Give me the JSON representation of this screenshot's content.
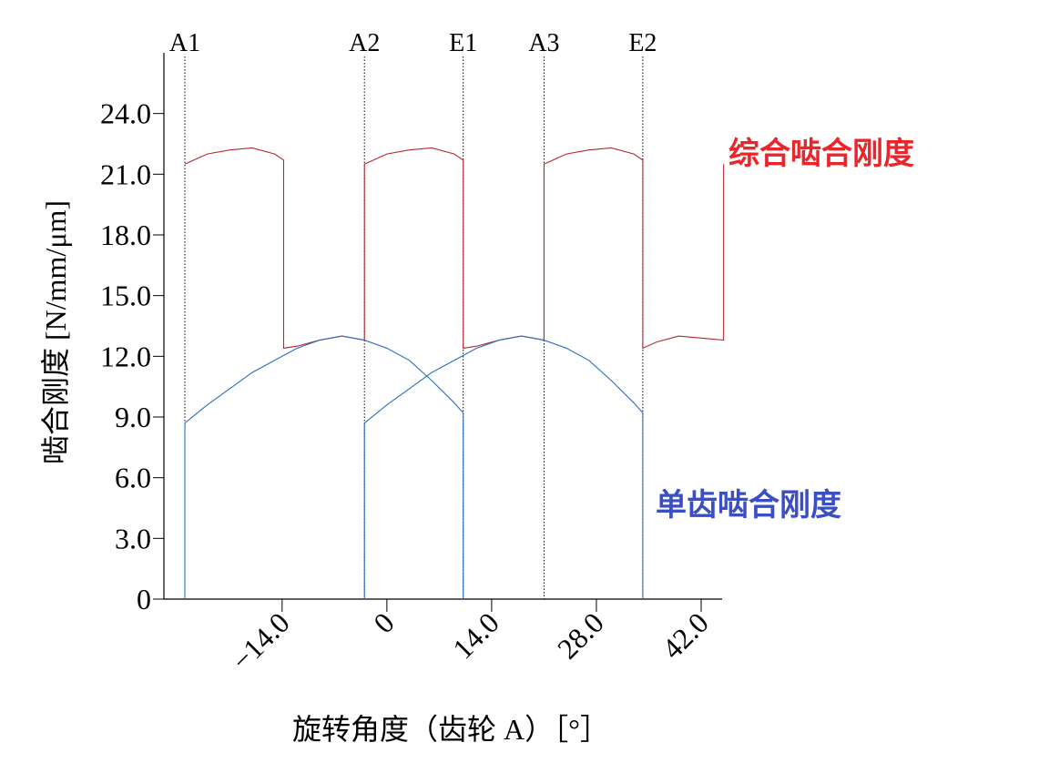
{
  "chart_data": {
    "type": "line",
    "xlabel": "旋转角度（齿轮 A）［°］",
    "ylabel": "啮合刚度 [N/mm/μm]",
    "xlim": [
      -29.8,
      44.8
    ],
    "ylim": [
      0,
      27
    ],
    "xticks": [
      {
        "value": -14,
        "label": "−14.0"
      },
      0,
      {
        "value": 14,
        "label": "14.0"
      },
      {
        "value": 28,
        "label": "28.0"
      },
      {
        "value": 42,
        "label": "42.0"
      }
    ],
    "yticks": [
      0,
      {
        "value": 3,
        "label": "3.0"
      },
      {
        "value": 6,
        "label": "6.0"
      },
      {
        "value": 9,
        "label": "9.0"
      },
      {
        "value": 12,
        "label": "12.0"
      },
      {
        "value": 15,
        "label": "15.0"
      },
      {
        "value": 18,
        "label": "18.0"
      },
      {
        "value": 21,
        "label": "21.0"
      },
      {
        "value": 24,
        "label": "24.0"
      }
    ],
    "markers": [
      {
        "label": "A1",
        "x": -27
      },
      {
        "label": "A2",
        "x": -3
      },
      {
        "label": "E1",
        "x": 10.2
      },
      {
        "label": "A3",
        "x": 21
      },
      {
        "label": "E2",
        "x": 34.2
      }
    ],
    "annotations": [
      {
        "text": "综合啮合刚度",
        "color": "#e8262b"
      },
      {
        "text": "单齿啮合刚度",
        "color": "#3a4fc4"
      }
    ],
    "series": [
      {
        "color": "#b22a2e",
        "x": [
          -27,
          -24,
          -21,
          -18,
          -15,
          -13.8,
          -13.8,
          -12,
          -9,
          -6,
          -3,
          -3,
          0,
          3,
          6,
          9,
          10.2,
          10.2,
          12,
          15,
          18,
          21,
          21,
          24,
          27,
          30,
          33,
          34.2,
          34.2,
          36,
          39,
          42,
          45,
          45
        ],
        "values": [
          21.5,
          22.0,
          22.2,
          22.3,
          22.0,
          21.7,
          12.4,
          12.5,
          12.8,
          13.0,
          12.8,
          21.5,
          22.0,
          22.2,
          22.3,
          22.0,
          21.7,
          12.4,
          12.5,
          12.8,
          13.0,
          12.8,
          21.5,
          22.0,
          22.2,
          22.3,
          22.0,
          21.7,
          12.4,
          12.7,
          13.0,
          12.9,
          12.8,
          21.5
        ]
      },
      {
        "color": "#2a6fc0",
        "x": [
          -27,
          -27,
          -24,
          -21,
          -18,
          -15,
          -12,
          -9,
          -6,
          -3,
          0,
          3,
          6,
          9,
          10.2,
          10.2
        ],
        "values": [
          0,
          8.7,
          9.6,
          10.4,
          11.2,
          11.8,
          12.4,
          12.8,
          13.0,
          12.8,
          12.4,
          11.8,
          10.8,
          9.7,
          9.2,
          0
        ]
      },
      {
        "color": "#2a6fc0",
        "x": [
          -3,
          -3,
          0,
          3,
          6,
          9,
          12,
          15,
          18,
          21,
          24,
          27,
          30,
          33,
          34.2,
          34.2
        ],
        "values": [
          0,
          8.7,
          9.6,
          10.4,
          11.2,
          11.8,
          12.4,
          12.8,
          13.0,
          12.8,
          12.4,
          11.8,
          10.8,
          9.7,
          9.2,
          0
        ]
      }
    ]
  }
}
